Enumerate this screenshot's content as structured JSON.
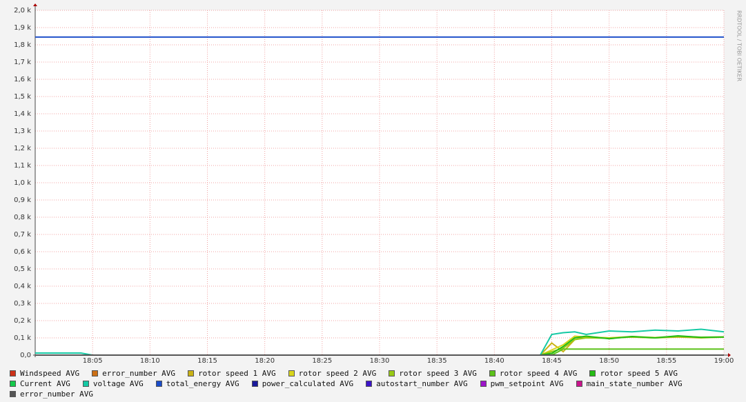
{
  "chart_data": {
    "type": "line",
    "watermark": "RRDTOOL / TOBI OETIKER",
    "x": [
      "18:00",
      "18:04",
      "18:05",
      "18:44",
      "18:45",
      "18:46",
      "18:47",
      "18:48",
      "18:50",
      "18:52",
      "18:54",
      "18:56",
      "18:58",
      "19:00"
    ],
    "xlim": [
      "18:00",
      "19:00"
    ],
    "xticks": [
      "18:05",
      "18:10",
      "18:15",
      "18:20",
      "18:25",
      "18:30",
      "18:35",
      "18:40",
      "18:45",
      "18:50",
      "18:55",
      "19:00"
    ],
    "ylim": [
      0,
      2000
    ],
    "yticks": [
      {
        "value": 0,
        "label": "0,0"
      },
      {
        "value": 100,
        "label": "0,1 k"
      },
      {
        "value": 200,
        "label": "0,2 k"
      },
      {
        "value": 300,
        "label": "0,3 k"
      },
      {
        "value": 400,
        "label": "0,4 k"
      },
      {
        "value": 500,
        "label": "0,5 k"
      },
      {
        "value": 600,
        "label": "0,6 k"
      },
      {
        "value": 700,
        "label": "0,7 k"
      },
      {
        "value": 800,
        "label": "0,8 k"
      },
      {
        "value": 900,
        "label": "0,9 k"
      },
      {
        "value": 1000,
        "label": "1,0 k"
      },
      {
        "value": 1100,
        "label": "1,1 k"
      },
      {
        "value": 1200,
        "label": "1,2 k"
      },
      {
        "value": 1300,
        "label": "1,3 k"
      },
      {
        "value": 1400,
        "label": "1,4 k"
      },
      {
        "value": 1500,
        "label": "1,5 k"
      },
      {
        "value": 1600,
        "label": "1,6 k"
      },
      {
        "value": 1700,
        "label": "1,7 k"
      },
      {
        "value": 1800,
        "label": "1,8 k"
      },
      {
        "value": 1900,
        "label": "1,9 k"
      },
      {
        "value": 2000,
        "label": "2,0 k"
      }
    ],
    "grid": true,
    "series": [
      {
        "name": "Windspeed AVG",
        "color": "#cc3118",
        "values": [
          0,
          0,
          0,
          0,
          0,
          0,
          0,
          0,
          0,
          0,
          0,
          0,
          0,
          0
        ]
      },
      {
        "name": "error_number AVG",
        "color": "#cc7016",
        "values": [
          0,
          0,
          0,
          0,
          0,
          0,
          0,
          0,
          0,
          0,
          0,
          0,
          0,
          0
        ]
      },
      {
        "name": "rotor speed 1 AVG",
        "color": "#c9b215",
        "values": [
          0,
          0,
          0,
          0,
          70,
          20,
          90,
          105,
          100,
          105,
          100,
          105,
          100,
          105
        ]
      },
      {
        "name": "rotor speed 2 AVG",
        "color": "#d8d41a",
        "values": [
          0,
          0,
          0,
          0,
          30,
          60,
          110,
          105,
          100,
          108,
          102,
          110,
          104,
          106
        ]
      },
      {
        "name": "rotor speed 3 AVG",
        "color": "#98c915",
        "values": [
          0,
          0,
          0,
          0,
          20,
          40,
          90,
          100,
          98,
          105,
          100,
          108,
          102,
          104
        ]
      },
      {
        "name": "rotor speed 4 AVG",
        "color": "#5cc21a",
        "values": [
          0,
          0,
          0,
          0,
          0,
          35,
          35,
          35,
          35,
          35,
          35,
          35,
          35,
          35
        ]
      },
      {
        "name": "rotor speed 5 AVG",
        "color": "#24bc14",
        "values": [
          0,
          0,
          0,
          0,
          10,
          50,
          100,
          110,
          95,
          108,
          100,
          112,
          103,
          105
        ]
      },
      {
        "name": "Current AVG",
        "color": "#14c94a",
        "values": [
          0,
          0,
          0,
          0,
          0,
          0,
          0,
          0,
          0,
          0,
          0,
          0,
          0,
          0
        ]
      },
      {
        "name": "voltage AVG",
        "color": "#14c9a4",
        "values": [
          12,
          12,
          0,
          0,
          120,
          130,
          135,
          120,
          140,
          135,
          145,
          140,
          150,
          135
        ]
      },
      {
        "name": "total_energy AVG",
        "color": "#1a4cc9",
        "values": [
          1845,
          1845,
          1845,
          1845,
          1845,
          1845,
          1845,
          1845,
          1845,
          1845,
          1845,
          1845,
          1845,
          1845
        ]
      },
      {
        "name": "power_calculated AVG",
        "color": "#1a1a9c",
        "values": [
          0,
          0,
          0,
          0,
          0,
          0,
          0,
          0,
          0,
          0,
          0,
          0,
          0,
          0
        ]
      },
      {
        "name": "autostart_number AVG",
        "color": "#3c14c9",
        "values": [
          0,
          0,
          0,
          0,
          0,
          0,
          0,
          0,
          0,
          0,
          0,
          0,
          0,
          0
        ]
      },
      {
        "name": "pwm_setpoint AVG",
        "color": "#9c14c9",
        "values": [
          0,
          0,
          0,
          0,
          0,
          0,
          0,
          0,
          0,
          0,
          0,
          0,
          0,
          0
        ]
      },
      {
        "name": "main_state_number AVG",
        "color": "#c9148c",
        "values": [
          0,
          0,
          0,
          0,
          0,
          0,
          0,
          0,
          0,
          0,
          0,
          0,
          0,
          0
        ]
      },
      {
        "name": "error_number AVG",
        "color": "#555555",
        "values": [
          0,
          0,
          0,
          0,
          0,
          0,
          0,
          0,
          0,
          0,
          0,
          0,
          0,
          0
        ]
      }
    ]
  }
}
